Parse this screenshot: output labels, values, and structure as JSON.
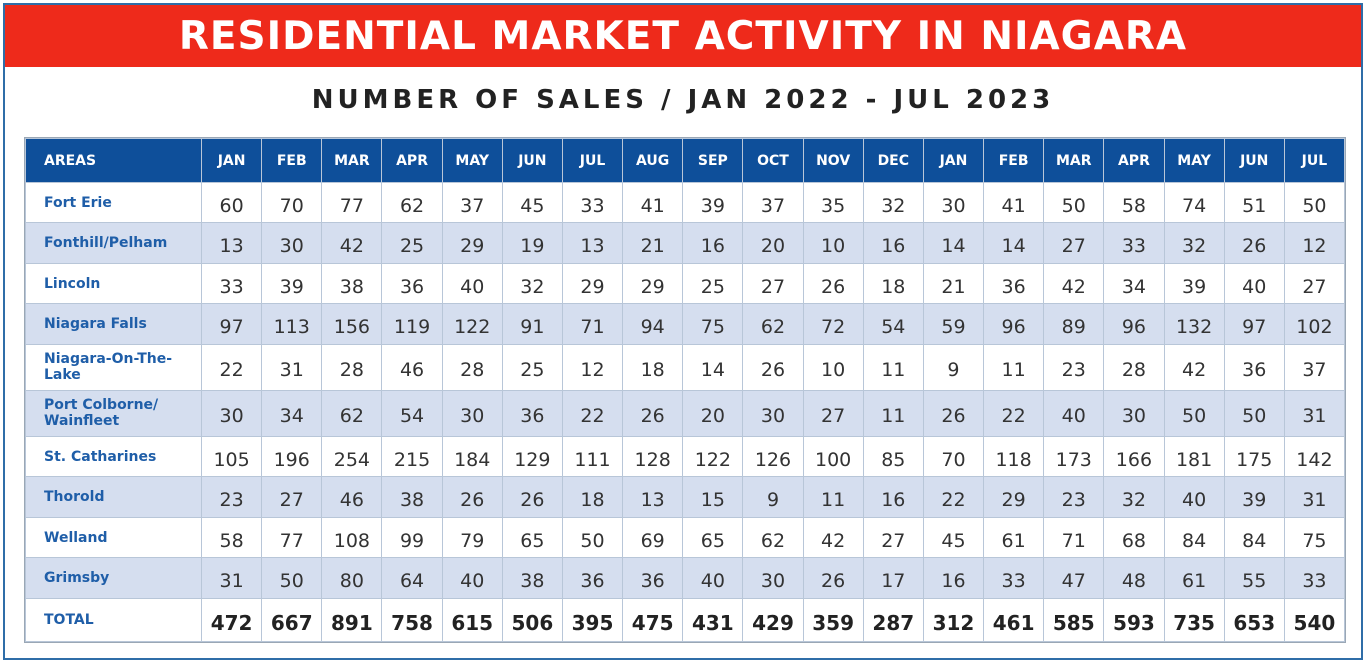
{
  "header": {
    "title": "RESIDENTIAL MARKET ACTIVITY IN NIAGARA",
    "subtitle": "NUMBER OF SALES / JAN 2022 - JUL 2023"
  },
  "colors": {
    "banner": "#ee2a1b",
    "table_header": "#0e4f9a",
    "area_text": "#1f5ea8",
    "alt_row": "#d5deef"
  },
  "chart_data": {
    "type": "table",
    "title": "RESIDENTIAL MARKET ACTIVITY IN NIAGARA",
    "subtitle": "NUMBER OF SALES / JAN 2022 - JUL 2023",
    "area_header": "AREAS",
    "months": [
      "JAN",
      "FEB",
      "MAR",
      "APR",
      "MAY",
      "JUN",
      "JUL",
      "AUG",
      "SEP",
      "OCT",
      "NOV",
      "DEC",
      "JAN",
      "FEB",
      "MAR",
      "APR",
      "MAY",
      "JUN",
      "JUL"
    ],
    "rows": [
      {
        "area": "Fort Erie",
        "values": [
          60,
          70,
          77,
          62,
          37,
          45,
          33,
          41,
          39,
          37,
          35,
          32,
          30,
          41,
          50,
          58,
          74,
          51,
          50
        ]
      },
      {
        "area": "Fonthill/Pelham",
        "values": [
          13,
          30,
          42,
          25,
          29,
          19,
          13,
          21,
          16,
          20,
          10,
          16,
          14,
          14,
          27,
          33,
          32,
          26,
          12
        ]
      },
      {
        "area": "Lincoln",
        "values": [
          33,
          39,
          38,
          36,
          40,
          32,
          29,
          29,
          25,
          27,
          26,
          18,
          21,
          36,
          42,
          34,
          39,
          40,
          27
        ]
      },
      {
        "area": "Niagara Falls",
        "values": [
          97,
          113,
          156,
          119,
          122,
          91,
          71,
          94,
          75,
          62,
          72,
          54,
          59,
          96,
          89,
          96,
          132,
          97,
          102
        ]
      },
      {
        "area": "Niagara-On-The-Lake",
        "values": [
          22,
          31,
          28,
          46,
          28,
          25,
          12,
          18,
          14,
          26,
          10,
          11,
          9,
          11,
          23,
          28,
          42,
          36,
          37
        ]
      },
      {
        "area": "Port Colborne/ Wainfleet",
        "values": [
          30,
          34,
          62,
          54,
          30,
          36,
          22,
          26,
          20,
          30,
          27,
          11,
          26,
          22,
          40,
          30,
          50,
          50,
          31
        ]
      },
      {
        "area": "St. Catharines",
        "values": [
          105,
          196,
          254,
          215,
          184,
          129,
          111,
          128,
          122,
          126,
          100,
          85,
          70,
          118,
          173,
          166,
          181,
          175,
          142
        ]
      },
      {
        "area": "Thorold",
        "values": [
          23,
          27,
          46,
          38,
          26,
          26,
          18,
          13,
          15,
          9,
          11,
          16,
          22,
          29,
          23,
          32,
          40,
          39,
          31
        ]
      },
      {
        "area": "Welland",
        "values": [
          58,
          77,
          108,
          99,
          79,
          65,
          50,
          69,
          65,
          62,
          42,
          27,
          45,
          61,
          71,
          68,
          84,
          84,
          75
        ]
      },
      {
        "area": "Grimsby",
        "values": [
          31,
          50,
          80,
          64,
          40,
          38,
          36,
          36,
          40,
          30,
          26,
          17,
          16,
          33,
          47,
          48,
          61,
          55,
          33
        ]
      }
    ],
    "total": {
      "area": "TOTAL",
      "values": [
        472,
        667,
        891,
        758,
        615,
        506,
        395,
        475,
        431,
        429,
        359,
        287,
        312,
        461,
        585,
        593,
        735,
        653,
        540
      ]
    }
  }
}
